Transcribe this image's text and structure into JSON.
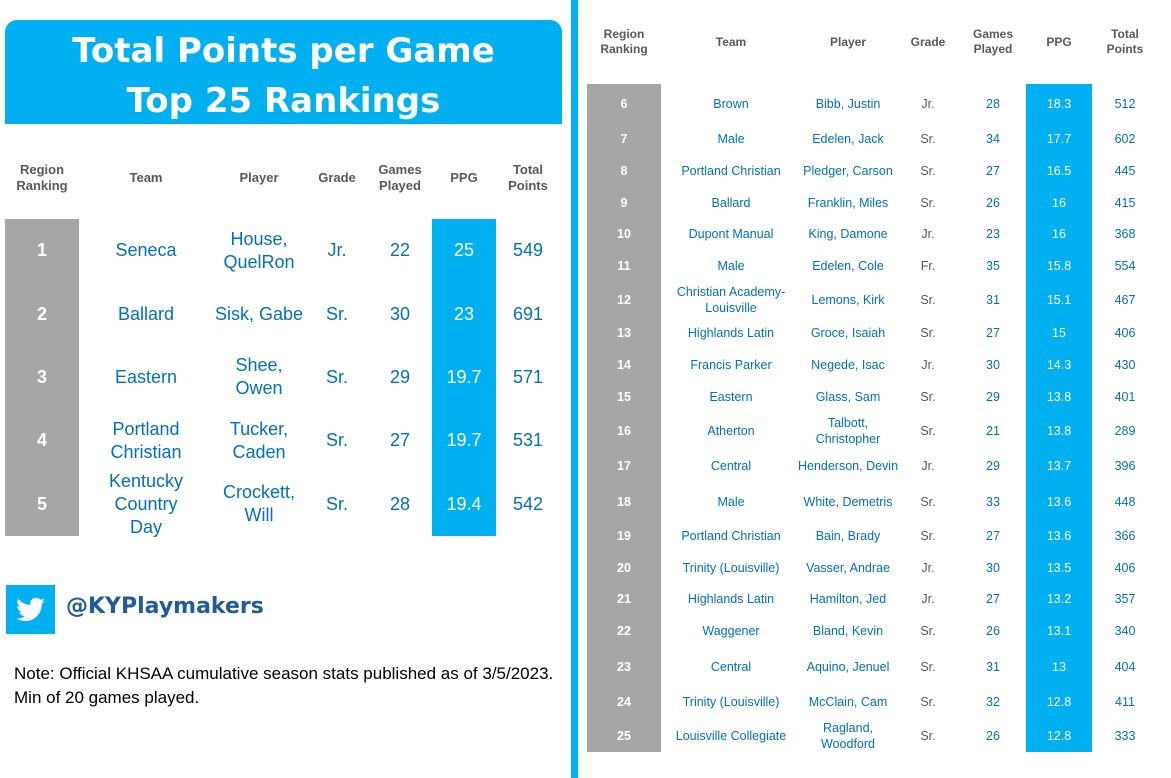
{
  "title_line1": "Total Points per Game",
  "title_line2": "Top 25 Rankings",
  "twitter_handle": "@KYPlaymakers",
  "note": "Note: Official KHSAA cumulative season stats published as of 3/5/2023. Min of 20 games played.",
  "colors": {
    "accent": "#00b0f0",
    "rank_bg": "#a6a6a6",
    "text_blue": "#0070c0",
    "header_gray": "#595959"
  },
  "icons": {
    "twitter": "twitter-bird-icon"
  },
  "headers": {
    "rank": "Region\nRanking",
    "team": "Team",
    "player": "Player",
    "grade": "Grade",
    "games": "Games\nPlayed",
    "ppg": "PPG",
    "total": "Total\nPoints"
  },
  "chart_data": {
    "type": "table",
    "columns": [
      "Region Ranking",
      "Team",
      "Player",
      "Grade",
      "Games Played",
      "PPG",
      "Total Points"
    ],
    "rows": [
      {
        "rank": "1",
        "team": "Seneca",
        "player": "House, QuelRon",
        "grade": "Jr.",
        "games": "22",
        "ppg": "25",
        "total": "549"
      },
      {
        "rank": "2",
        "team": "Ballard",
        "player": "Sisk, Gabe",
        "grade": "Sr.",
        "games": "30",
        "ppg": "23",
        "total": "691"
      },
      {
        "rank": "3",
        "team": "Eastern",
        "player": "Shee, Owen",
        "grade": "Sr.",
        "games": "29",
        "ppg": "19.7",
        "total": "571"
      },
      {
        "rank": "4",
        "team": "Portland Christian",
        "player": "Tucker, Caden",
        "grade": "Sr.",
        "games": "27",
        "ppg": "19.7",
        "total": "531"
      },
      {
        "rank": "5",
        "team": "Kentucky Country Day",
        "player": "Crockett, Will",
        "grade": "Sr.",
        "games": "28",
        "ppg": "19.4",
        "total": "542"
      },
      {
        "rank": "6",
        "team": "Brown",
        "player": "Bibb, Justin",
        "grade": "Jr.",
        "games": "28",
        "ppg": "18.3",
        "total": "512"
      },
      {
        "rank": "7",
        "team": "Male",
        "player": "Edelen, Jack",
        "grade": "Sr.",
        "games": "34",
        "ppg": "17.7",
        "total": "602"
      },
      {
        "rank": "8",
        "team": "Portland Christian",
        "player": "Pledger, Carson",
        "grade": "Sr.",
        "games": "27",
        "ppg": "16.5",
        "total": "445"
      },
      {
        "rank": "9",
        "team": "Ballard",
        "player": "Franklin, Miles",
        "grade": "Sr.",
        "games": "26",
        "ppg": "16",
        "total": "415"
      },
      {
        "rank": "10",
        "team": "Dupont Manual",
        "player": "King, Damone",
        "grade": "Jr.",
        "games": "23",
        "ppg": "16",
        "total": "368"
      },
      {
        "rank": "11",
        "team": "Male",
        "player": "Edelen, Cole",
        "grade": "Fr.",
        "games": "35",
        "ppg": "15.8",
        "total": "554"
      },
      {
        "rank": "12",
        "team": "Christian Academy-Louisville",
        "player": "Lemons, Kirk",
        "grade": "Sr.",
        "games": "31",
        "ppg": "15.1",
        "total": "467"
      },
      {
        "rank": "13",
        "team": "Highlands Latin",
        "player": "Groce, Isaiah",
        "grade": "Sr.",
        "games": "27",
        "ppg": "15",
        "total": "406"
      },
      {
        "rank": "14",
        "team": "Francis Parker",
        "player": "Negede, Isac",
        "grade": "Jr.",
        "games": "30",
        "ppg": "14.3",
        "total": "430"
      },
      {
        "rank": "15",
        "team": "Eastern",
        "player": "Glass, Sam",
        "grade": "Sr.",
        "games": "29",
        "ppg": "13.8",
        "total": "401"
      },
      {
        "rank": "16",
        "team": "Atherton",
        "player": "Talbott, Christopher",
        "grade": "Sr.",
        "games": "21",
        "ppg": "13.8",
        "total": "289"
      },
      {
        "rank": "17",
        "team": "Central",
        "player": "Henderson, Devin",
        "grade": "Jr.",
        "games": "29",
        "ppg": "13.7",
        "total": "396"
      },
      {
        "rank": "18",
        "team": "Male",
        "player": "White, Demetris",
        "grade": "Sr.",
        "games": "33",
        "ppg": "13.6",
        "total": "448"
      },
      {
        "rank": "19",
        "team": "Portland Christian",
        "player": "Bain, Brady",
        "grade": "Sr.",
        "games": "27",
        "ppg": "13.6",
        "total": "366"
      },
      {
        "rank": "20",
        "team": "Trinity (Louisville)",
        "player": "Vasser, Andrae",
        "grade": "Jr.",
        "games": "30",
        "ppg": "13.5",
        "total": "406"
      },
      {
        "rank": "21",
        "team": "Highlands Latin",
        "player": "Hamilton, Jed",
        "grade": "Jr.",
        "games": "27",
        "ppg": "13.2",
        "total": "357"
      },
      {
        "rank": "22",
        "team": "Waggener",
        "player": "Bland, Kevin",
        "grade": "Sr.",
        "games": "26",
        "ppg": "13.1",
        "total": "340"
      },
      {
        "rank": "23",
        "team": "Central",
        "player": "Aquino, Jenuel",
        "grade": "Sr.",
        "games": "31",
        "ppg": "13",
        "total": "404"
      },
      {
        "rank": "24",
        "team": "Trinity (Louisville)",
        "player": "McClain, Cam",
        "grade": "Sr.",
        "games": "32",
        "ppg": "12.8",
        "total": "411"
      },
      {
        "rank": "25",
        "team": "Louisville Collegiate",
        "player": "Ragland, Woodford",
        "grade": "Sr.",
        "games": "26",
        "ppg": "12.8",
        "total": "333"
      }
    ]
  }
}
